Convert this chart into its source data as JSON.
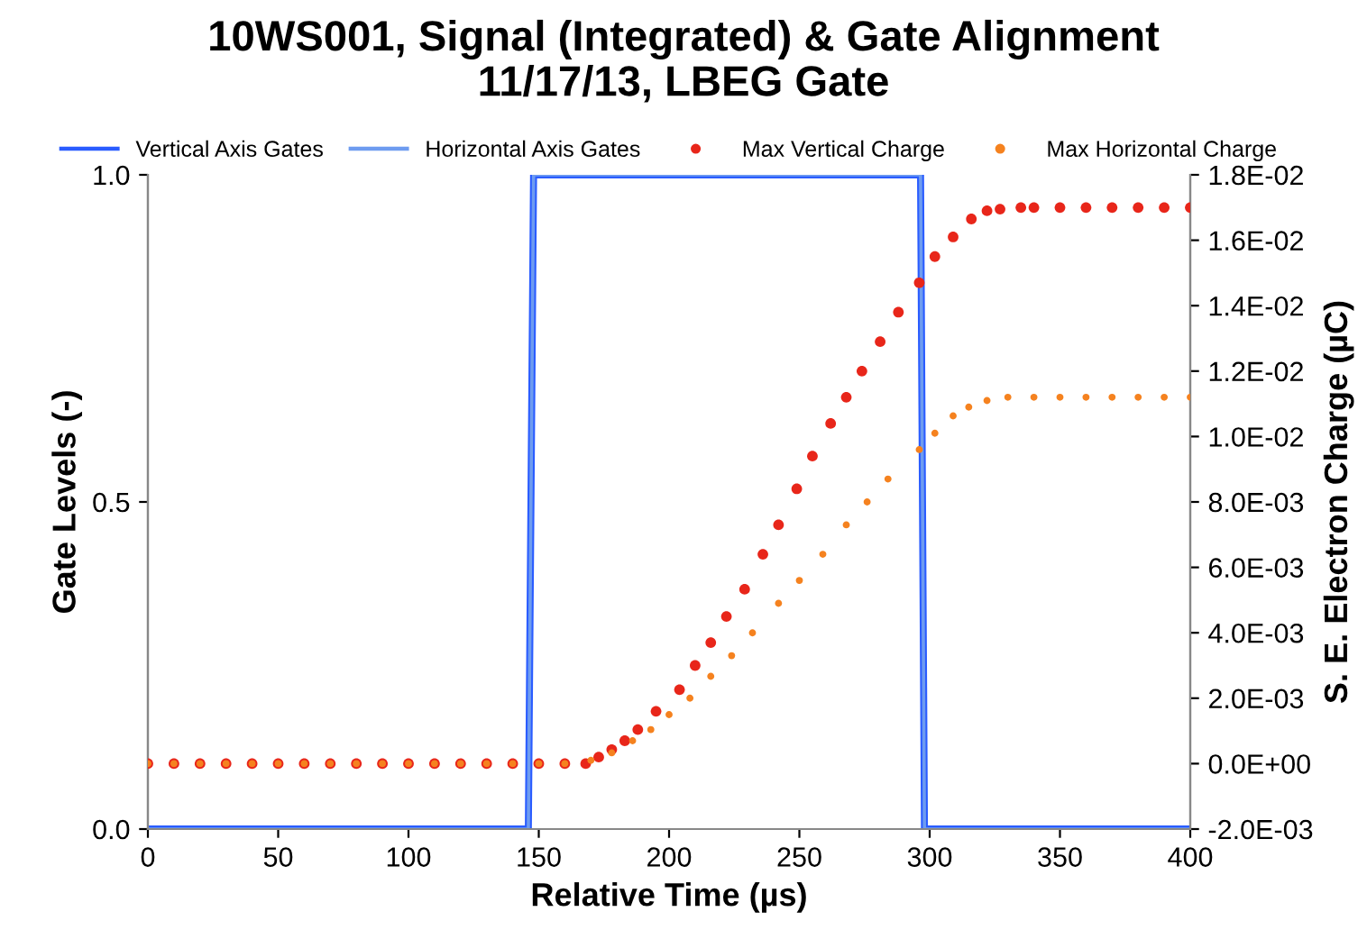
{
  "chart_data": {
    "type": "line",
    "title": "10WS001, Signal (Integrated) & Gate Alignment",
    "subtitle": "11/17/13, LBEG Gate",
    "xlabel": "Relative Time (µs)",
    "ylabel": "Gate Levels (-)",
    "y2label": "S. E. Electron Charge (µC)",
    "xlim": [
      0,
      400
    ],
    "xticks": [
      0,
      50,
      100,
      150,
      200,
      250,
      300,
      350,
      400
    ],
    "ylim": [
      0,
      1
    ],
    "yticks": [
      {
        "value": 0,
        "label": "0.0"
      },
      {
        "value": 0.5,
        "label": "0.5"
      },
      {
        "value": 1,
        "label": "1.0"
      }
    ],
    "y2lim": [
      -0.002,
      0.018
    ],
    "y2ticks": [
      {
        "value": -0.002,
        "label": "-2.0E-03"
      },
      {
        "value": 0,
        "label": "0.0E+00"
      },
      {
        "value": 0.002,
        "label": "2.0E-03"
      },
      {
        "value": 0.004,
        "label": "4.0E-03"
      },
      {
        "value": 0.006,
        "label": "6.0E-03"
      },
      {
        "value": 0.008,
        "label": "8.0E-03"
      },
      {
        "value": 0.01,
        "label": "1.0E-02"
      },
      {
        "value": 0.012,
        "label": "1.2E-02"
      },
      {
        "value": 0.014,
        "label": "1.4E-02"
      },
      {
        "value": 0.016,
        "label": "1.6E-02"
      },
      {
        "value": 0.018,
        "label": "1.8E-02"
      }
    ],
    "grid": false,
    "legend": "top",
    "series": [
      {
        "name": "Vertical Axis Gates",
        "color": "#2a5cff",
        "marker": "none",
        "x": [
          0,
          146,
          148,
          296.5,
          298,
          400
        ],
        "values": [
          0,
          0,
          1,
          1,
          0,
          0
        ]
      },
      {
        "name": "Horizontal Axis Gates",
        "color": "#6e9cf0",
        "marker": "none",
        "x": [
          0,
          146,
          148,
          296.5,
          298,
          400
        ],
        "values": [
          0,
          0,
          1,
          1,
          0,
          0
        ]
      },
      {
        "name": "Max Vertical Charge",
        "type": "scatter",
        "axis": "y2",
        "color": "#e8261a",
        "marker": "circle",
        "x": [
          0,
          10,
          20,
          30,
          40,
          50,
          60,
          70,
          80,
          90,
          100,
          110,
          120,
          130,
          140,
          150,
          160,
          168,
          173,
          178,
          183,
          188,
          195,
          204,
          210,
          216,
          222,
          229,
          236,
          242,
          249,
          255,
          262,
          268,
          274,
          281,
          288,
          296,
          302,
          309,
          316,
          322,
          327,
          335,
          340,
          350,
          360,
          370,
          380,
          390,
          400
        ],
        "values": [
          0,
          0,
          0,
          0,
          0,
          0,
          0,
          0,
          0,
          0,
          0,
          0,
          0,
          0,
          0,
          0,
          0,
          0,
          0.0002,
          0.00043,
          0.0007,
          0.00104,
          0.0016,
          0.00226,
          0.003,
          0.0037,
          0.0045,
          0.00533,
          0.0064,
          0.0073,
          0.0084,
          0.0094,
          0.0104,
          0.0112,
          0.012,
          0.0129,
          0.0138,
          0.0147,
          0.0155,
          0.0161,
          0.01665,
          0.0169,
          0.01695,
          0.017,
          0.017,
          0.017,
          0.017,
          0.017,
          0.017,
          0.017,
          0.017
        ]
      },
      {
        "name": "Max Horizontal Charge",
        "type": "scatter",
        "axis": "y2",
        "color": "#f5821f",
        "marker": "circle",
        "x": [
          0,
          10,
          20,
          30,
          40,
          50,
          60,
          70,
          80,
          90,
          100,
          110,
          120,
          130,
          140,
          150,
          160,
          170,
          178,
          186,
          193,
          200,
          208,
          216,
          224,
          232,
          242,
          250,
          259,
          268,
          276,
          284,
          296,
          302,
          309,
          315,
          322,
          330,
          340,
          350,
          360,
          370,
          380,
          390,
          400
        ],
        "values": [
          0,
          0,
          0,
          0,
          0,
          0,
          0,
          0,
          0,
          0,
          0,
          0,
          0,
          0,
          0,
          0,
          0,
          0.0001,
          0.00033,
          0.0007,
          0.00104,
          0.0015,
          0.002,
          0.00267,
          0.0033,
          0.004,
          0.0049,
          0.0056,
          0.0064,
          0.0073,
          0.008,
          0.0087,
          0.0096,
          0.0101,
          0.01063,
          0.0109,
          0.0111,
          0.0112,
          0.0112,
          0.0112,
          0.0112,
          0.0112,
          0.0112,
          0.0112,
          0.0112
        ]
      }
    ]
  }
}
